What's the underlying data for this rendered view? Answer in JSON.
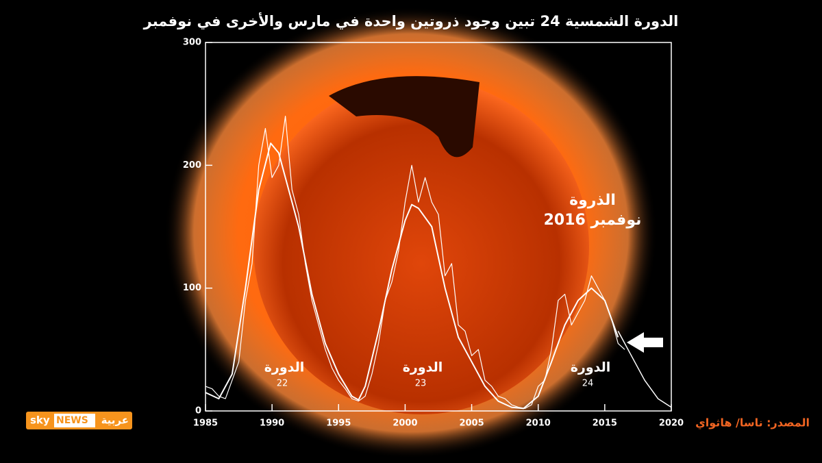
{
  "chart_data": {
    "type": "line",
    "title": "الدورة الشمسية 24 تبين وجود ذروتين واحدة في مارس والأخرى في نوفمبر",
    "xlim": [
      1985,
      2020
    ],
    "xticks": [
      1985,
      1990,
      1995,
      2000,
      2005,
      2010,
      2015,
      2020
    ],
    "ylim": [
      0,
      300
    ],
    "yticks": [
      0,
      100,
      200,
      300
    ],
    "series": [
      {
        "color": "#ffffff",
        "x": [
          1985,
          1985.5,
          1986,
          1986.5,
          1987,
          1987.5,
          1988,
          1988.5,
          1989,
          1989.5,
          1990,
          1990.5,
          1991,
          1991.5,
          1992,
          1992.5,
          1993,
          1993.5,
          1994,
          1994.5,
          1995,
          1995.5,
          1996,
          1996.5,
          1997,
          1997.5,
          1998,
          1998.5,
          1999,
          1999.5,
          2000,
          2000.5,
          2001,
          2001.5,
          2002,
          2002.5,
          2003,
          2003.5,
          2004,
          2004.5,
          2005,
          2005.5,
          2006,
          2006.5,
          2007,
          2007.5,
          2008,
          2008.5,
          2009,
          2009.5,
          2010,
          2010.5,
          2011,
          2011.5,
          2012,
          2012.5,
          2013,
          2013.5,
          2014,
          2014.5,
          2015,
          2015.5,
          2016,
          2016.5
        ],
        "values": [
          20,
          18,
          12,
          10,
          25,
          40,
          90,
          120,
          200,
          230,
          190,
          200,
          240,
          180,
          160,
          120,
          90,
          70,
          50,
          35,
          25,
          18,
          10,
          8,
          12,
          30,
          55,
          90,
          105,
          130,
          170,
          200,
          170,
          190,
          170,
          160,
          110,
          120,
          70,
          65,
          45,
          50,
          25,
          20,
          12,
          10,
          5,
          3,
          2,
          5,
          20,
          25,
          50,
          90,
          95,
          70,
          80,
          90,
          110,
          100,
          90,
          75,
          55,
          50
        ]
      },
      {
        "color": "#ffffff",
        "x": [
          1985,
          1986,
          1987,
          1988,
          1989,
          1989.9,
          1990.5,
          1991,
          1992,
          1993,
          1994,
          1995,
          1996,
          1996.5,
          1997,
          1998,
          1999,
          2000,
          2000.5,
          2001,
          2002,
          2003,
          2004,
          2005,
          2006,
          2007,
          2008,
          2008.9,
          2010,
          2011,
          2012,
          2013,
          2014,
          2015,
          2016
        ],
        "values": [
          15,
          10,
          30,
          100,
          180,
          218,
          210,
          190,
          150,
          95,
          55,
          30,
          12,
          9,
          20,
          65,
          115,
          155,
          168,
          165,
          150,
          100,
          60,
          40,
          20,
          8,
          3,
          2,
          12,
          40,
          70,
          90,
          100,
          90,
          60
        ]
      },
      {
        "color": "#ffffff",
        "x": [
          2016,
          2017,
          2018,
          2019,
          2020
        ],
        "values": [
          65,
          45,
          25,
          10,
          3
        ]
      }
    ],
    "cycles": [
      {
        "label": "الدورة",
        "number": "22"
      },
      {
        "label": "الدورة",
        "number": "23"
      },
      {
        "label": "الدورة",
        "number": "24"
      }
    ],
    "peak": {
      "line1": "الذروة",
      "line2": "نوفمبر 2016"
    },
    "source": "المصدر: ناسا/ هاثواي",
    "logo": {
      "sky": "sky",
      "news": "NEWS",
      "arabic": "عربية"
    }
  }
}
